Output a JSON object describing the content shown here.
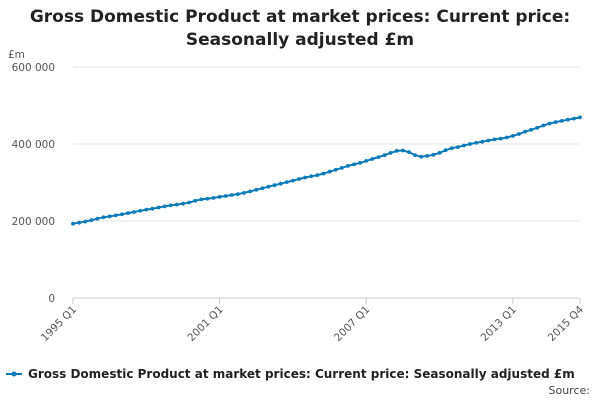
{
  "chart_data": {
    "type": "line",
    "title": "Gross Domestic Product at market prices: Current price:\nSeasonally adjusted £m",
    "unit_label": "£m",
    "ylim": [
      0,
      600000
    ],
    "y_ticks": [
      0,
      200000,
      400000,
      600000
    ],
    "y_tick_labels": [
      "0",
      "200 000",
      "400 000",
      "600 000"
    ],
    "x_tick_labels": [
      "1995 Q1",
      "2001 Q1",
      "2007 Q1",
      "2013 Q1",
      "2015 Q4"
    ],
    "grid": "horizontal",
    "legend_position": "bottom",
    "source_label": "Source:",
    "colors": {
      "series": "#0a7bb9",
      "grid": "#e6e6e6",
      "axis": "#cccccc"
    },
    "series": [
      {
        "name": "Gross Domestic Product at market prices: Current price: Seasonally adjusted £m",
        "x": [
          "1995 Q1",
          "1995 Q2",
          "1995 Q3",
          "1995 Q4",
          "1996 Q1",
          "1996 Q2",
          "1996 Q3",
          "1996 Q4",
          "1997 Q1",
          "1997 Q2",
          "1997 Q3",
          "1997 Q4",
          "1998 Q1",
          "1998 Q2",
          "1998 Q3",
          "1998 Q4",
          "1999 Q1",
          "1999 Q2",
          "1999 Q3",
          "1999 Q4",
          "2000 Q1",
          "2000 Q2",
          "2000 Q3",
          "2000 Q4",
          "2001 Q1",
          "2001 Q2",
          "2001 Q3",
          "2001 Q4",
          "2002 Q1",
          "2002 Q2",
          "2002 Q3",
          "2002 Q4",
          "2003 Q1",
          "2003 Q2",
          "2003 Q3",
          "2003 Q4",
          "2004 Q1",
          "2004 Q2",
          "2004 Q3",
          "2004 Q4",
          "2005 Q1",
          "2005 Q2",
          "2005 Q3",
          "2005 Q4",
          "2006 Q1",
          "2006 Q2",
          "2006 Q3",
          "2006 Q4",
          "2007 Q1",
          "2007 Q2",
          "2007 Q3",
          "2007 Q4",
          "2008 Q1",
          "2008 Q2",
          "2008 Q3",
          "2008 Q4",
          "2009 Q1",
          "2009 Q2",
          "2009 Q3",
          "2009 Q4",
          "2010 Q1",
          "2010 Q2",
          "2010 Q3",
          "2010 Q4",
          "2011 Q1",
          "2011 Q2",
          "2011 Q3",
          "2011 Q4",
          "2012 Q1",
          "2012 Q2",
          "2012 Q3",
          "2012 Q4",
          "2013 Q1",
          "2013 Q2",
          "2013 Q3",
          "2013 Q4",
          "2014 Q1",
          "2014 Q2",
          "2014 Q3",
          "2014 Q4",
          "2015 Q1",
          "2015 Q2",
          "2015 Q3",
          "2015 Q4"
        ],
        "values": [
          193000,
          195500,
          198500,
          202000,
          206000,
          209500,
          212000,
          214500,
          217500,
          220500,
          223500,
          226500,
          229500,
          232000,
          235000,
          238000,
          240500,
          242500,
          245000,
          248000,
          252500,
          256000,
          258000,
          260000,
          262500,
          265000,
          267500,
          270000,
          273000,
          277000,
          281000,
          285000,
          289000,
          293000,
          297000,
          301000,
          305000,
          309000,
          313000,
          316000,
          319000,
          323000,
          328000,
          333000,
          338000,
          343000,
          347000,
          351000,
          356000,
          361000,
          366000,
          371000,
          377000,
          382000,
          383000,
          379000,
          371000,
          367000,
          369000,
          372000,
          377000,
          384000,
          389000,
          392000,
          396000,
          400000,
          403000,
          406000,
          409000,
          412000,
          414000,
          417000,
          421000,
          426000,
          432000,
          437000,
          442000,
          448000,
          453000,
          457000,
          460000,
          463000,
          466000,
          469000
        ]
      }
    ]
  }
}
